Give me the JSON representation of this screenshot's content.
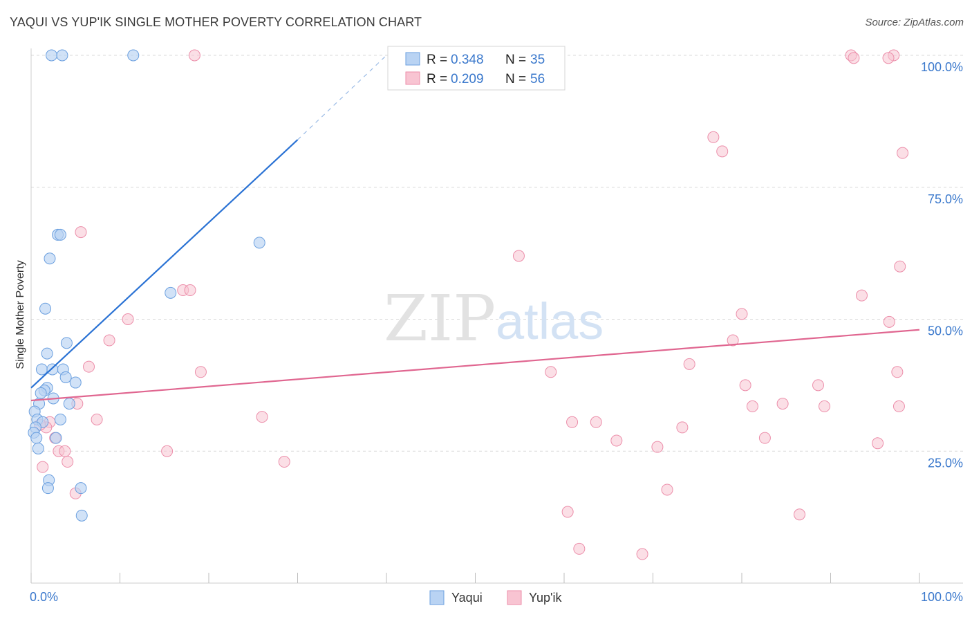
{
  "header": {
    "title": "YAQUI VS YUP'IK SINGLE MOTHER POVERTY CORRELATION CHART",
    "source": "Source: ZipAtlas.com"
  },
  "watermark": {
    "zip": "ZIP",
    "atlas": "atlas"
  },
  "colors": {
    "yaqui_fill": "#b9d3f3",
    "yaqui_stroke": "#6a9fdf",
    "yaqui_line": "#2a72d4",
    "yupik_fill": "#f8c4d2",
    "yupik_stroke": "#ec8eaa",
    "yupik_line": "#e06690",
    "tick_label": "#3a78cc",
    "grid": "#d9d9d9"
  },
  "legend_box": {
    "rows": [
      {
        "r_label": "R = ",
        "r_value": "0.348",
        "n_label": "N = ",
        "n_value": "35"
      },
      {
        "r_label": "R = ",
        "r_value": "0.209",
        "n_label": "N = ",
        "n_value": "56"
      }
    ]
  },
  "chart_data": {
    "type": "scatter",
    "title": "YAQUI VS YUP'IK SINGLE MOTHER POVERTY CORRELATION CHART",
    "xlabel": "",
    "ylabel": "Single Mother Poverty",
    "xlim": [
      0,
      100
    ],
    "ylim": [
      0,
      102
    ],
    "x_tick_labels": [
      "0.0%",
      "100.0%"
    ],
    "y_ticks": [
      25,
      50,
      75,
      100
    ],
    "y_tick_labels": [
      "25.0%",
      "50.0%",
      "75.0%",
      "100.0%"
    ],
    "legend": [
      "Yaqui",
      "Yup'ik"
    ],
    "series": [
      {
        "name": "Yaqui",
        "r": 0.348,
        "n": 35,
        "trend": {
          "x0": 0,
          "y0": 37,
          "x1": 30,
          "y1": 84,
          "dash_x1": 40,
          "dash_y1": 100
        },
        "points": [
          [
            2.3,
            100
          ],
          [
            3.5,
            100
          ],
          [
            11.5,
            100
          ],
          [
            3.0,
            66
          ],
          [
            3.3,
            66
          ],
          [
            25.7,
            64.5
          ],
          [
            2.1,
            61.5
          ],
          [
            15.7,
            55
          ],
          [
            1.6,
            52
          ],
          [
            4.0,
            45.5
          ],
          [
            1.8,
            43.5
          ],
          [
            1.2,
            40.5
          ],
          [
            2.4,
            40.5
          ],
          [
            3.6,
            40.5
          ],
          [
            3.9,
            39
          ],
          [
            5.0,
            38
          ],
          [
            1.8,
            37
          ],
          [
            1.5,
            36.5
          ],
          [
            1.1,
            36
          ],
          [
            2.5,
            35
          ],
          [
            0.9,
            34
          ],
          [
            4.3,
            34
          ],
          [
            0.4,
            32.5
          ],
          [
            0.7,
            31
          ],
          [
            3.3,
            31
          ],
          [
            1.3,
            30.5
          ],
          [
            0.5,
            29.5
          ],
          [
            0.3,
            28.5
          ],
          [
            0.6,
            27.5
          ],
          [
            2.8,
            27.5
          ],
          [
            0.8,
            25.5
          ],
          [
            2.0,
            19.5
          ],
          [
            1.9,
            18
          ],
          [
            5.6,
            18
          ],
          [
            5.7,
            12.8
          ]
        ]
      },
      {
        "name": "Yup'ik",
        "r": 0.209,
        "n": 56,
        "trend": {
          "x0": 0,
          "y0": 34.6,
          "x1": 100,
          "y1": 48
        },
        "points": [
          [
            18.4,
            100
          ],
          [
            92.3,
            100
          ],
          [
            97.1,
            100
          ],
          [
            76.8,
            84.5
          ],
          [
            77.8,
            81.8
          ],
          [
            98.1,
            81.5
          ],
          [
            5.6,
            66.5
          ],
          [
            54.9,
            62
          ],
          [
            97.8,
            60
          ],
          [
            17.1,
            55.5
          ],
          [
            17.9,
            55.5
          ],
          [
            93.5,
            54.5
          ],
          [
            10.9,
            50
          ],
          [
            80.0,
            51
          ],
          [
            96.6,
            49.5
          ],
          [
            8.8,
            46
          ],
          [
            79.0,
            46
          ],
          [
            6.5,
            41
          ],
          [
            74.1,
            41.5
          ],
          [
            19.1,
            40
          ],
          [
            58.5,
            40
          ],
          [
            97.5,
            40
          ],
          [
            88.6,
            37.5
          ],
          [
            80.4,
            37.5
          ],
          [
            5.2,
            34
          ],
          [
            84.6,
            34
          ],
          [
            89.3,
            33.5
          ],
          [
            97.7,
            33.5
          ],
          [
            81.2,
            33.5
          ],
          [
            26.0,
            31.5
          ],
          [
            7.4,
            31
          ],
          [
            60.9,
            30.5
          ],
          [
            63.6,
            30.5
          ],
          [
            2.1,
            30.5
          ],
          [
            1.7,
            29.5
          ],
          [
            1.0,
            30
          ],
          [
            73.3,
            29.5
          ],
          [
            82.6,
            27.5
          ],
          [
            65.9,
            27
          ],
          [
            95.3,
            26.5
          ],
          [
            2.7,
            27.5
          ],
          [
            70.5,
            25.8
          ],
          [
            3.1,
            25
          ],
          [
            3.8,
            25
          ],
          [
            15.3,
            25
          ],
          [
            4.1,
            23
          ],
          [
            28.5,
            23
          ],
          [
            1.3,
            22
          ],
          [
            5.0,
            17
          ],
          [
            71.6,
            17.7
          ],
          [
            60.4,
            13.5
          ],
          [
            86.5,
            13
          ],
          [
            61.7,
            6.5
          ],
          [
            68.8,
            5.5
          ],
          [
            92.6,
            99.5
          ],
          [
            96.5,
            99.5
          ]
        ]
      }
    ]
  }
}
